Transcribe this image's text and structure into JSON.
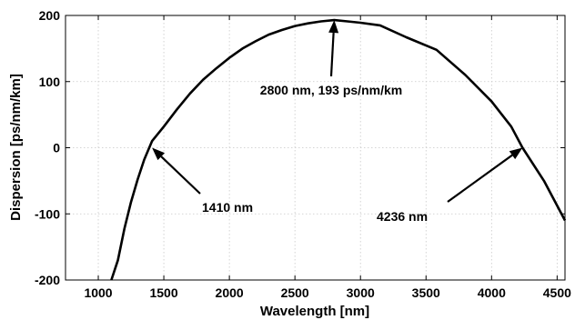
{
  "chart_data": {
    "type": "line",
    "xlabel": "Wavelength [nm]",
    "ylabel": "Dispersion [ps/nm/km]",
    "xlim": [
      750,
      4560
    ],
    "ylim": [
      -200,
      200
    ],
    "xticks": [
      1000,
      1500,
      2000,
      2500,
      3000,
      3500,
      4000,
      4500
    ],
    "yticks": [
      -200,
      -100,
      0,
      100,
      200
    ],
    "grid": true,
    "series": [
      {
        "x": [
          1100,
          1150,
          1200,
          1250,
          1300,
          1350,
          1410,
          1500,
          1600,
          1700,
          1800,
          1900,
          2000,
          2100,
          2200,
          2300,
          2400,
          2500,
          2600,
          2700,
          2800,
          2900,
          3000,
          3150,
          3350,
          3580,
          3800,
          4000,
          4150,
          4236,
          4400,
          4560
        ],
        "y": [
          -200,
          -170,
          -122,
          -82,
          -48,
          -18,
          10,
          32,
          58,
          82,
          103,
          120,
          136,
          150,
          161,
          171,
          178,
          184,
          188,
          191,
          193,
          191,
          189,
          185,
          167,
          148,
          110,
          70,
          32,
          0,
          -50,
          -110
        ]
      }
    ],
    "annotations": [
      {
        "text": "2800 nm, 193 ps/nm/km",
        "x": 2800,
        "y": 193
      },
      {
        "text": "1410 nm",
        "x": 1410,
        "y": 0
      },
      {
        "text": "4236 nm",
        "x": 4236,
        "y": 0
      }
    ]
  }
}
